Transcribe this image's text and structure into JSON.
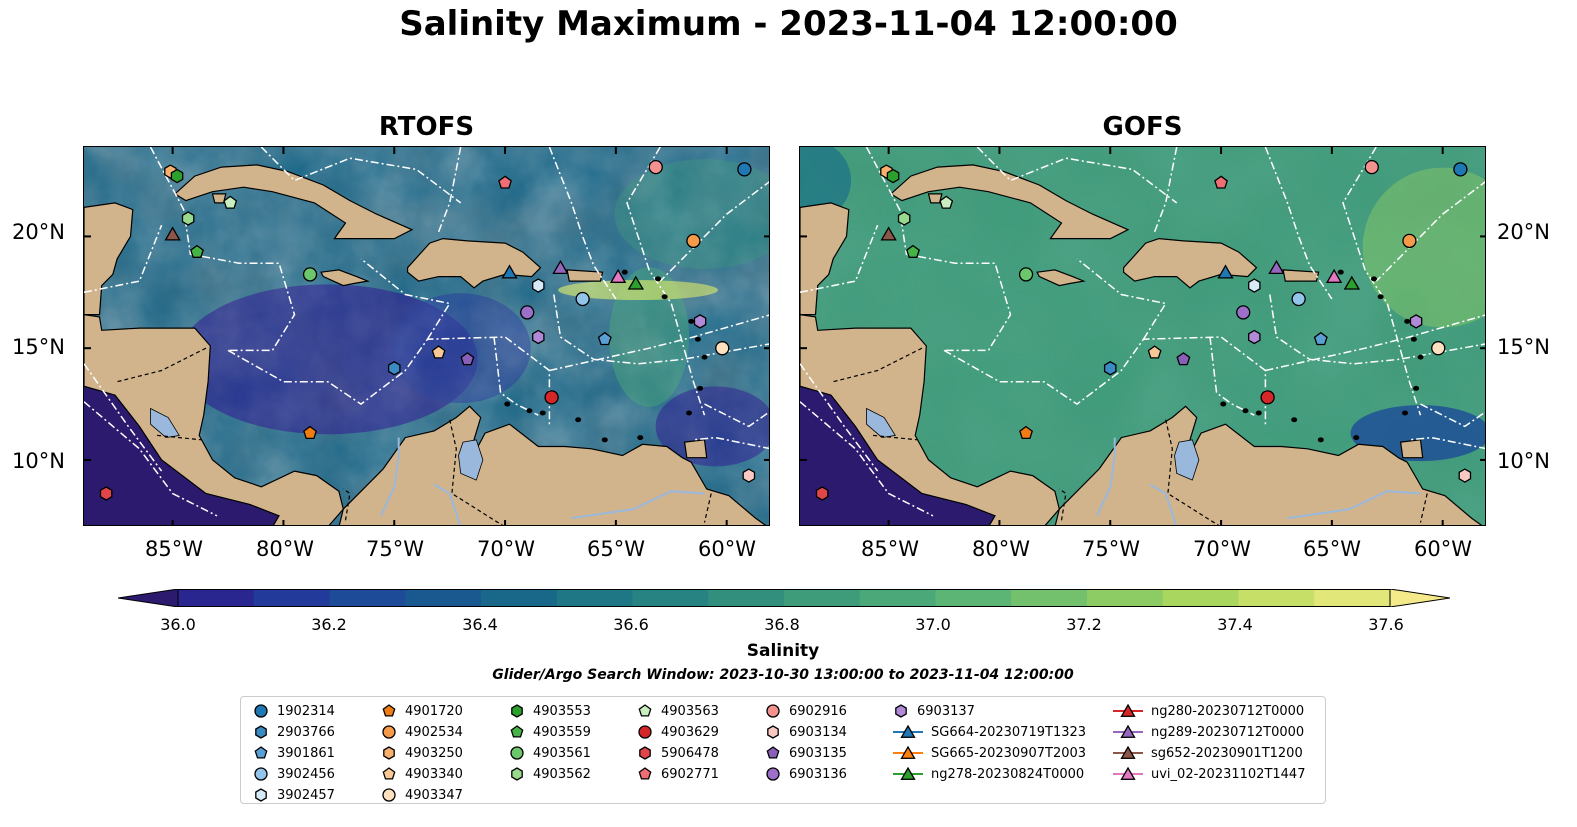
{
  "title": "Salinity Maximum - 2023-11-04 12:00:00",
  "panels": [
    {
      "title": "RTOFS"
    },
    {
      "title": "GOFS"
    }
  ],
  "axes": {
    "lat_labels": [
      "20°N",
      "15°N",
      "10°N"
    ],
    "lon_labels": [
      "85°W",
      "80°W",
      "75°W",
      "70°W",
      "65°W",
      "60°W"
    ],
    "lon_range": [
      -89,
      -58
    ],
    "lat_range": [
      7,
      24
    ]
  },
  "colorbar": {
    "label": "Salinity",
    "range": [
      36.0,
      37.6
    ],
    "extend": "both",
    "ticks": [
      "36.0",
      "36.2",
      "36.4",
      "36.6",
      "36.8",
      "37.0",
      "37.2",
      "37.4",
      "37.6"
    ],
    "colors": [
      "#2b1a6e",
      "#2a2690",
      "#223a9a",
      "#1d4b98",
      "#1a5990",
      "#196789",
      "#1f7685",
      "#278381",
      "#328f7e",
      "#3e9c7b",
      "#4ba879",
      "#5cb575",
      "#73c16c",
      "#8dcc64",
      "#a9d65e",
      "#c6df67",
      "#e2e77a",
      "#f5ea8a"
    ]
  },
  "search_window": "Glider/Argo Search Window: 2023-10-30 13:00:00 to 2023-11-04 12:00:00",
  "colors": {
    "land": "#d2b48c",
    "river": "#9ab8dc",
    "deep_water": "#2b1a6e"
  },
  "legend": [
    {
      "label": "1902314",
      "marker": "circle",
      "color": "#1f77b4"
    },
    {
      "label": "2903766",
      "marker": "hexagon",
      "color": "#3a8ac3"
    },
    {
      "label": "3901861",
      "marker": "pentagon",
      "color": "#5aa0d4"
    },
    {
      "label": "3902456",
      "marker": "circle",
      "color": "#93c4ea"
    },
    {
      "label": "3902457",
      "marker": "hexagon",
      "color": "#d6eaf8"
    },
    {
      "label": "4901720",
      "marker": "pentagon",
      "color": "#f07d14"
    },
    {
      "label": "4902534",
      "marker": "circle",
      "color": "#f59a48"
    },
    {
      "label": "4903250",
      "marker": "hexagon",
      "color": "#f7b06e"
    },
    {
      "label": "4903340",
      "marker": "pentagon",
      "color": "#f9c897"
    },
    {
      "label": "4903347",
      "marker": "circle",
      "color": "#fde0c0"
    },
    {
      "label": "4903553",
      "marker": "hexagon",
      "color": "#2ca02c"
    },
    {
      "label": "4903559",
      "marker": "pentagon",
      "color": "#46b346"
    },
    {
      "label": "4903561",
      "marker": "circle",
      "color": "#6cc66c"
    },
    {
      "label": "4903562",
      "marker": "hexagon",
      "color": "#98d98e"
    },
    {
      "label": "4903563",
      "marker": "pentagon",
      "color": "#c9efc0"
    },
    {
      "label": "4903629",
      "marker": "circle",
      "color": "#d62728"
    },
    {
      "label": "5906478",
      "marker": "hexagon",
      "color": "#e0454a"
    },
    {
      "label": "6902771",
      "marker": "pentagon",
      "color": "#ef6e75"
    },
    {
      "label": "6902916",
      "marker": "circle",
      "color": "#f4928f"
    },
    {
      "label": "6903134",
      "marker": "hexagon",
      "color": "#fbc9c4"
    },
    {
      "label": "6903135",
      "marker": "pentagon",
      "color": "#8a5fb8"
    },
    {
      "label": "6903136",
      "marker": "circle",
      "color": "#9c70c8"
    },
    {
      "label": "6903137",
      "marker": "hexagon",
      "color": "#b08ad6"
    },
    {
      "label": "SG664-20230719T1323",
      "marker": "triangle",
      "color": "#1f77b4"
    },
    {
      "label": "SG665-20230907T2003",
      "marker": "triangle",
      "color": "#ff7f0e"
    },
    {
      "label": "ng278-20230824T0000",
      "marker": "triangle",
      "color": "#2ca02c"
    },
    {
      "label": "ng280-20230712T0000",
      "marker": "triangle",
      "color": "#d62728"
    },
    {
      "label": "ng289-20230712T0000",
      "marker": "triangle",
      "color": "#9467bd"
    },
    {
      "label": "sg652-20230901T1200",
      "marker": "triangle",
      "color": "#8c564b"
    },
    {
      "label": "uvi_02-20231102T1447",
      "marker": "triangle",
      "color": "#e377c2"
    }
  ],
  "points": [
    {
      "id": "1902314",
      "lon": -59.2,
      "lat": 23.0
    },
    {
      "id": "2903766",
      "lon": -75.0,
      "lat": 14.1
    },
    {
      "id": "3901861",
      "lon": -65.5,
      "lat": 15.4
    },
    {
      "id": "3902456",
      "lon": -66.5,
      "lat": 17.2
    },
    {
      "id": "3902457",
      "lon": -68.5,
      "lat": 17.8
    },
    {
      "id": "4901720",
      "lon": -78.8,
      "lat": 11.2
    },
    {
      "id": "4902534",
      "lon": -61.5,
      "lat": 19.8
    },
    {
      "id": "4903250",
      "lon": -85.1,
      "lat": 22.9
    },
    {
      "id": "4903340",
      "lon": -73.0,
      "lat": 14.8
    },
    {
      "id": "4903347",
      "lon": -60.2,
      "lat": 15.0
    },
    {
      "id": "4903553",
      "lon": -84.8,
      "lat": 22.7
    },
    {
      "id": "4903559",
      "lon": -83.9,
      "lat": 19.3
    },
    {
      "id": "4903561",
      "lon": -78.8,
      "lat": 18.3
    },
    {
      "id": "4903562",
      "lon": -84.3,
      "lat": 20.8
    },
    {
      "id": "4903563",
      "lon": -82.4,
      "lat": 21.5
    },
    {
      "id": "4903629",
      "lon": -67.9,
      "lat": 12.8
    },
    {
      "id": "5906478",
      "lon": -88.0,
      "lat": 8.5
    },
    {
      "id": "6902771",
      "lon": -70.0,
      "lat": 22.4
    },
    {
      "id": "6902916",
      "lon": -63.2,
      "lat": 23.1
    },
    {
      "id": "6903134",
      "lon": -59.0,
      "lat": 9.3
    },
    {
      "id": "6903135",
      "lon": -71.7,
      "lat": 14.5
    },
    {
      "id": "6903136",
      "lon": -69.0,
      "lat": 16.6
    },
    {
      "id": "6903137",
      "lon": -68.5,
      "lat": 15.5
    },
    {
      "id": "SG664-20230719T1323",
      "lon": -69.8,
      "lat": 18.4
    },
    {
      "id": "ng278-20230824T0000",
      "lon": -64.1,
      "lat": 17.9
    },
    {
      "id": "ng289-20230712T0000",
      "lon": -67.5,
      "lat": 18.6
    },
    {
      "id": "sg652-20230901T1200",
      "lon": -85.0,
      "lat": 20.1
    },
    {
      "id": "uvi_02-20231102T1447",
      "lon": -64.9,
      "lat": 18.2
    },
    {
      "id": "6903137-b",
      "lon": -61.2,
      "lat": 16.2
    }
  ]
}
